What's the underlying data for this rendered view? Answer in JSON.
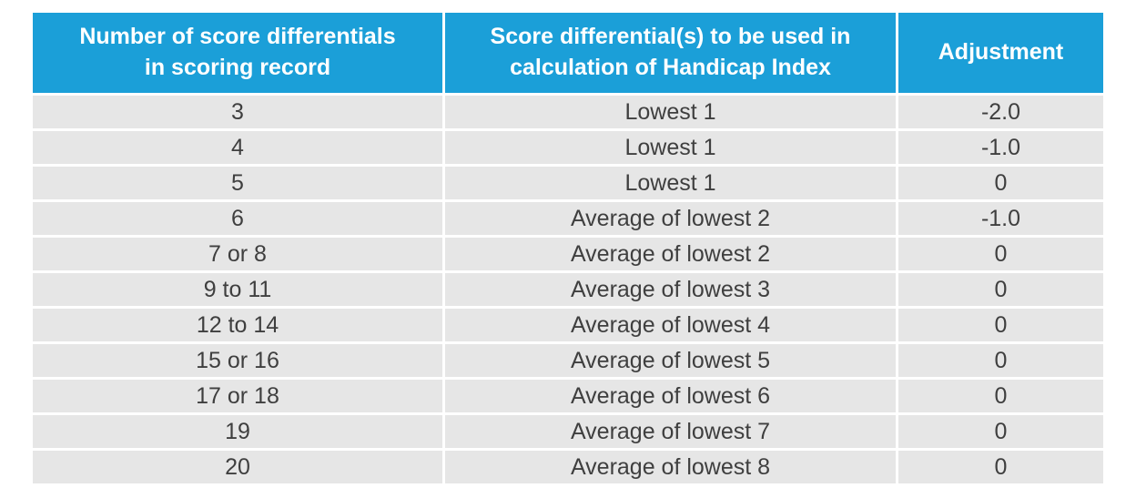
{
  "colors": {
    "header_bg": "#1b9fd8",
    "header_text": "#ffffff",
    "row_bg": "#e6e6e6",
    "body_text": "#3f3f3f"
  },
  "table": {
    "columns": [
      {
        "label": "Number of score differentials\nin scoring record"
      },
      {
        "label": "Score differential(s) to be used in\ncalculation of Handicap Index"
      },
      {
        "label": "Adjustment"
      }
    ],
    "rows": [
      {
        "count": "3",
        "used": "Lowest 1",
        "adjustment": "-2.0"
      },
      {
        "count": "4",
        "used": "Lowest 1",
        "adjustment": "-1.0"
      },
      {
        "count": "5",
        "used": "Lowest 1",
        "adjustment": "0"
      },
      {
        "count": "6",
        "used": "Average of lowest 2",
        "adjustment": "-1.0"
      },
      {
        "count": "7 or 8",
        "used": "Average of lowest 2",
        "adjustment": "0"
      },
      {
        "count": "9 to 11",
        "used": "Average of lowest 3",
        "adjustment": "0"
      },
      {
        "count": "12 to 14",
        "used": "Average of lowest 4",
        "adjustment": "0"
      },
      {
        "count": "15 or 16",
        "used": "Average of lowest 5",
        "adjustment": "0"
      },
      {
        "count": "17 or 18",
        "used": "Average of lowest 6",
        "adjustment": "0"
      },
      {
        "count": "19",
        "used": "Average of lowest 7",
        "adjustment": "0"
      },
      {
        "count": "20",
        "used": "Average of lowest 8",
        "adjustment": "0"
      }
    ]
  }
}
